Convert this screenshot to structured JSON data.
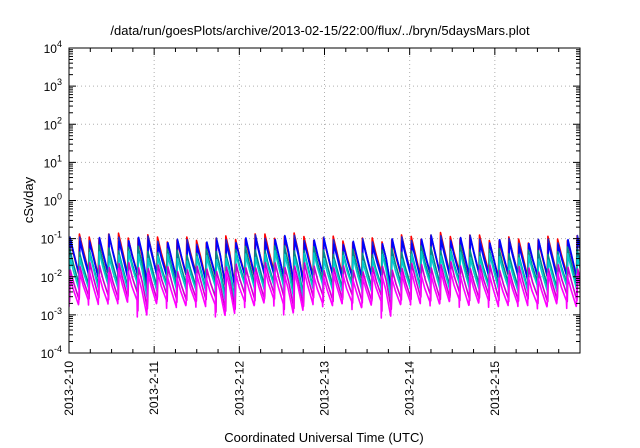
{
  "chart_data": {
    "type": "line",
    "title": "/data/run/goesPlots/archive/2013-02-15/22:00/flux/../bryn/5daysMars.plot",
    "xlabel": "Coordinated Universal Time (UTC)",
    "ylabel": "cSv/day",
    "yscale": "log",
    "ylim": [
      0.0001,
      10000
    ],
    "xlim": [
      "2013-02-10 00:00",
      "2013-02-16 00:00"
    ],
    "x_ticks": [
      "2013-2-10",
      "2013-2-11",
      "2013-2-12",
      "2013-2-13",
      "2013-2-14",
      "2013-2-15"
    ],
    "y_ticks": [
      {
        "base": "10",
        "exp": "-4"
      },
      {
        "base": "10",
        "exp": "-3"
      },
      {
        "base": "10",
        "exp": "-2"
      },
      {
        "base": "10",
        "exp": "-1"
      },
      {
        "base": "10",
        "exp": "0"
      },
      {
        "base": "10",
        "exp": "1"
      },
      {
        "base": "10",
        "exp": "2"
      },
      {
        "base": "10",
        "exp": "3"
      },
      {
        "base": "10",
        "exp": "4"
      }
    ],
    "grid": true,
    "dip_times": [
      "2013-02-10 21:00",
      "2013-02-11 21:00",
      "2013-02-12 16:00",
      "2013-02-13 18:00"
    ],
    "series": [
      {
        "color": "#ff0000",
        "period_hours": 2.75,
        "peak": 0.105,
        "trough": 0.011
      },
      {
        "color": "#2222cc",
        "period_hours": 2.75,
        "peak": 0.095,
        "trough": 0.01
      },
      {
        "color": "#0000ff",
        "period_hours": 2.75,
        "peak": 0.085,
        "trough": 0.009
      },
      {
        "color": "#008b8b",
        "period_hours": 2.75,
        "peak": 0.05,
        "trough": 0.006
      },
      {
        "color": "#00cccc",
        "period_hours": 2.75,
        "peak": 0.035,
        "trough": 0.0045
      },
      {
        "color": "#cc00cc",
        "period_hours": 2.75,
        "peak": 0.018,
        "trough": 0.0025
      },
      {
        "color": "#ff00ff",
        "period_hours": 2.75,
        "peak": 0.012,
        "trough": 0.0018
      }
    ]
  }
}
